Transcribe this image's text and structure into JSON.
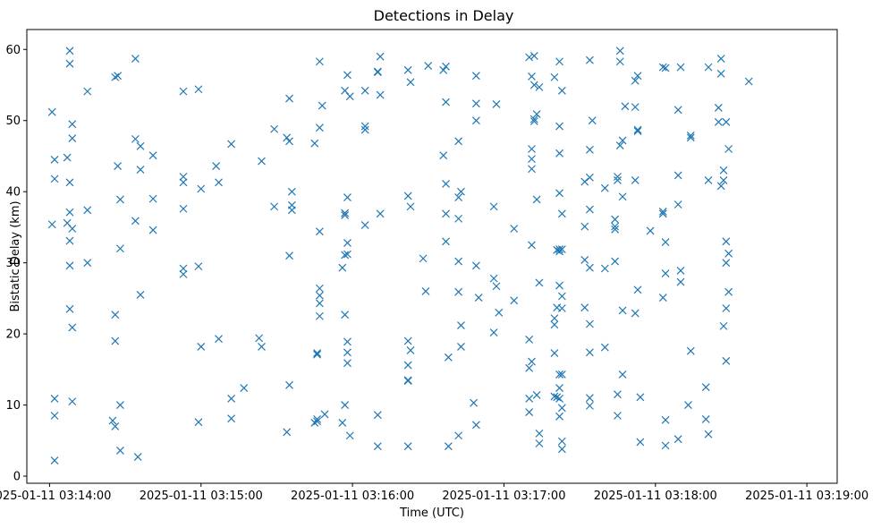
{
  "chart_data": {
    "type": "scatter",
    "title": "Detections in Delay",
    "xlabel": "Time (UTC)",
    "ylabel": "Bistatic Delay (km)",
    "x_axis_type": "time",
    "x_ticks": [
      "2025-01-11 03:14:00",
      "2025-01-11 03:15:00",
      "2025-01-11 03:16:00",
      "2025-01-11 03:17:00",
      "2025-01-11 03:18:00",
      "2025-01-11 03:19:00"
    ],
    "xlim": [
      "2025-01-11 03:13:51",
      "2025-01-11 03:19:12"
    ],
    "y_ticks": [
      0,
      10,
      20,
      30,
      40,
      50,
      60
    ],
    "ylim": [
      -1.0,
      62.8
    ],
    "grid": false,
    "legend": "none",
    "marker": "x",
    "color": "#1f77b4",
    "points": [
      [
        "2025-01-11 03:14:01",
        51.2
      ],
      [
        "2025-01-11 03:14:02",
        44.5
      ],
      [
        "2025-01-11 03:14:02",
        41.8
      ],
      [
        "2025-01-11 03:14:01",
        35.4
      ],
      [
        "2025-01-11 03:14:02",
        10.9
      ],
      [
        "2025-01-11 03:14:02",
        8.5
      ],
      [
        "2025-01-11 03:14:02",
        2.2
      ],
      [
        "2025-01-11 03:14:08",
        59.8
      ],
      [
        "2025-01-11 03:14:08",
        58.0
      ],
      [
        "2025-01-11 03:14:09",
        49.5
      ],
      [
        "2025-01-11 03:14:09",
        47.5
      ],
      [
        "2025-01-11 03:14:07",
        44.8
      ],
      [
        "2025-01-11 03:14:08",
        41.3
      ],
      [
        "2025-01-11 03:14:08",
        37.1
      ],
      [
        "2025-01-11 03:14:07",
        35.6
      ],
      [
        "2025-01-11 03:14:09",
        34.8
      ],
      [
        "2025-01-11 03:14:08",
        33.1
      ],
      [
        "2025-01-11 03:14:08",
        29.6
      ],
      [
        "2025-01-11 03:14:08",
        23.5
      ],
      [
        "2025-01-11 03:14:09",
        20.9
      ],
      [
        "2025-01-11 03:14:09",
        10.5
      ],
      [
        "2025-01-11 03:14:15",
        54.1
      ],
      [
        "2025-01-11 03:14:15",
        37.4
      ],
      [
        "2025-01-11 03:14:15",
        30.0
      ],
      [
        "2025-01-11 03:14:26",
        56.1
      ],
      [
        "2025-01-11 03:14:27",
        56.3
      ],
      [
        "2025-01-11 03:14:27",
        43.6
      ],
      [
        "2025-01-11 03:14:28",
        38.9
      ],
      [
        "2025-01-11 03:14:28",
        32.0
      ],
      [
        "2025-01-11 03:14:26",
        22.7
      ],
      [
        "2025-01-11 03:14:26",
        19.0
      ],
      [
        "2025-01-11 03:14:28",
        10.0
      ],
      [
        "2025-01-11 03:14:25",
        7.8
      ],
      [
        "2025-01-11 03:14:26",
        7.0
      ],
      [
        "2025-01-11 03:14:28",
        3.6
      ],
      [
        "2025-01-11 03:14:34",
        58.7
      ],
      [
        "2025-01-11 03:14:34",
        47.4
      ],
      [
        "2025-01-11 03:14:36",
        46.4
      ],
      [
        "2025-01-11 03:14:36",
        43.1
      ],
      [
        "2025-01-11 03:14:34",
        35.9
      ],
      [
        "2025-01-11 03:14:36",
        25.5
      ],
      [
        "2025-01-11 03:14:35",
        2.7
      ],
      [
        "2025-01-11 03:14:41",
        45.1
      ],
      [
        "2025-01-11 03:14:41",
        39.0
      ],
      [
        "2025-01-11 03:14:41",
        34.6
      ],
      [
        "2025-01-11 03:14:53",
        54.1
      ],
      [
        "2025-01-11 03:14:53",
        42.1
      ],
      [
        "2025-01-11 03:14:53",
        41.3
      ],
      [
        "2025-01-11 03:14:53",
        37.6
      ],
      [
        "2025-01-11 03:14:53",
        29.2
      ],
      [
        "2025-01-11 03:14:53",
        28.4
      ],
      [
        "2025-01-11 03:14:59",
        54.4
      ],
      [
        "2025-01-11 03:15:00",
        40.4
      ],
      [
        "2025-01-11 03:14:59",
        29.5
      ],
      [
        "2025-01-11 03:15:00",
        18.2
      ],
      [
        "2025-01-11 03:14:59",
        7.6
      ],
      [
        "2025-01-11 03:15:06",
        43.6
      ],
      [
        "2025-01-11 03:15:07",
        41.3
      ],
      [
        "2025-01-11 03:15:07",
        19.3
      ],
      [
        "2025-01-11 03:15:12",
        46.7
      ],
      [
        "2025-01-11 03:15:12",
        10.9
      ],
      [
        "2025-01-11 03:15:12",
        8.1
      ],
      [
        "2025-01-11 03:15:17",
        12.4
      ],
      [
        "2025-01-11 03:15:24",
        44.3
      ],
      [
        "2025-01-11 03:15:23",
        19.4
      ],
      [
        "2025-01-11 03:15:24",
        18.2
      ],
      [
        "2025-01-11 03:15:29",
        48.8
      ],
      [
        "2025-01-11 03:15:29",
        37.9
      ],
      [
        "2025-01-11 03:15:35",
        53.1
      ],
      [
        "2025-01-11 03:15:34",
        47.6
      ],
      [
        "2025-01-11 03:15:35",
        47.1
      ],
      [
        "2025-01-11 03:15:36",
        40.0
      ],
      [
        "2025-01-11 03:15:36",
        38.1
      ],
      [
        "2025-01-11 03:15:36",
        37.4
      ],
      [
        "2025-01-11 03:15:35",
        31.0
      ],
      [
        "2025-01-11 03:15:35",
        12.8
      ],
      [
        "2025-01-11 03:15:34",
        6.2
      ],
      [
        "2025-01-11 03:15:47",
        58.3
      ],
      [
        "2025-01-11 03:15:48",
        52.1
      ],
      [
        "2025-01-11 03:15:47",
        49.0
      ],
      [
        "2025-01-11 03:15:45",
        46.8
      ],
      [
        "2025-01-11 03:15:47",
        34.4
      ],
      [
        "2025-01-11 03:15:47",
        26.4
      ],
      [
        "2025-01-11 03:15:47",
        25.4
      ],
      [
        "2025-01-11 03:15:47",
        24.3
      ],
      [
        "2025-01-11 03:15:47",
        22.5
      ],
      [
        "2025-01-11 03:15:46",
        17.3
      ],
      [
        "2025-01-11 03:15:46",
        17.1
      ],
      [
        "2025-01-11 03:15:49",
        8.7
      ],
      [
        "2025-01-11 03:15:46",
        8.0
      ],
      [
        "2025-01-11 03:15:46",
        7.7
      ],
      [
        "2025-01-11 03:15:45",
        7.5
      ],
      [
        "2025-01-11 03:15:58",
        56.4
      ],
      [
        "2025-01-11 03:15:57",
        54.2
      ],
      [
        "2025-01-11 03:15:59",
        53.4
      ],
      [
        "2025-01-11 03:15:58",
        39.2
      ],
      [
        "2025-01-11 03:15:57",
        37.0
      ],
      [
        "2025-01-11 03:15:57",
        36.7
      ],
      [
        "2025-01-11 03:15:58",
        32.8
      ],
      [
        "2025-01-11 03:15:58",
        31.2
      ],
      [
        "2025-01-11 03:15:57",
        31.1
      ],
      [
        "2025-01-11 03:15:56",
        29.3
      ],
      [
        "2025-01-11 03:15:57",
        22.7
      ],
      [
        "2025-01-11 03:15:58",
        18.9
      ],
      [
        "2025-01-11 03:15:58",
        17.4
      ],
      [
        "2025-01-11 03:15:58",
        15.9
      ],
      [
        "2025-01-11 03:15:57",
        10.0
      ],
      [
        "2025-01-11 03:15:56",
        7.5
      ],
      [
        "2025-01-11 03:15:59",
        5.7
      ],
      [
        "2025-01-11 03:16:05",
        54.2
      ],
      [
        "2025-01-11 03:16:05",
        49.2
      ],
      [
        "2025-01-11 03:16:05",
        48.7
      ],
      [
        "2025-01-11 03:16:05",
        35.3
      ],
      [
        "2025-01-11 03:16:11",
        59.0
      ],
      [
        "2025-01-11 03:16:10",
        56.9
      ],
      [
        "2025-01-11 03:16:10",
        56.8
      ],
      [
        "2025-01-11 03:16:11",
        53.6
      ],
      [
        "2025-01-11 03:16:11",
        36.9
      ],
      [
        "2025-01-11 03:16:10",
        8.6
      ],
      [
        "2025-01-11 03:16:10",
        4.2
      ],
      [
        "2025-01-11 03:16:22",
        57.1
      ],
      [
        "2025-01-11 03:16:23",
        55.4
      ],
      [
        "2025-01-11 03:16:22",
        39.4
      ],
      [
        "2025-01-11 03:16:23",
        37.9
      ],
      [
        "2025-01-11 03:16:22",
        19.0
      ],
      [
        "2025-01-11 03:16:23",
        17.7
      ],
      [
        "2025-01-11 03:16:22",
        15.6
      ],
      [
        "2025-01-11 03:16:22",
        13.5
      ],
      [
        "2025-01-11 03:16:22",
        13.4
      ],
      [
        "2025-01-11 03:16:22",
        4.2
      ],
      [
        "2025-01-11 03:16:30",
        57.7
      ],
      [
        "2025-01-11 03:16:28",
        30.6
      ],
      [
        "2025-01-11 03:16:29",
        26.0
      ],
      [
        "2025-01-11 03:16:36",
        57.1
      ],
      [
        "2025-01-11 03:16:37",
        57.6
      ],
      [
        "2025-01-11 03:16:37",
        52.6
      ],
      [
        "2025-01-11 03:16:36",
        45.1
      ],
      [
        "2025-01-11 03:16:37",
        41.1
      ],
      [
        "2025-01-11 03:16:37",
        36.9
      ],
      [
        "2025-01-11 03:16:37",
        33.0
      ],
      [
        "2025-01-11 03:16:38",
        16.7
      ],
      [
        "2025-01-11 03:16:38",
        4.2
      ],
      [
        "2025-01-11 03:16:42",
        47.1
      ],
      [
        "2025-01-11 03:16:43",
        40.0
      ],
      [
        "2025-01-11 03:16:42",
        39.2
      ],
      [
        "2025-01-11 03:16:42",
        36.2
      ],
      [
        "2025-01-11 03:16:42",
        30.2
      ],
      [
        "2025-01-11 03:16:42",
        25.9
      ],
      [
        "2025-01-11 03:16:43",
        21.2
      ],
      [
        "2025-01-11 03:16:43",
        18.2
      ],
      [
        "2025-01-11 03:16:42",
        5.7
      ],
      [
        "2025-01-11 03:16:49",
        56.3
      ],
      [
        "2025-01-11 03:16:49",
        52.4
      ],
      [
        "2025-01-11 03:16:49",
        50.0
      ],
      [
        "2025-01-11 03:16:49",
        29.6
      ],
      [
        "2025-01-11 03:16:50",
        25.1
      ],
      [
        "2025-01-11 03:16:48",
        10.3
      ],
      [
        "2025-01-11 03:16:49",
        7.2
      ],
      [
        "2025-01-11 03:16:57",
        52.3
      ],
      [
        "2025-01-11 03:16:56",
        37.9
      ],
      [
        "2025-01-11 03:16:56",
        27.8
      ],
      [
        "2025-01-11 03:16:57",
        26.7
      ],
      [
        "2025-01-11 03:16:58",
        23.0
      ],
      [
        "2025-01-11 03:16:56",
        20.2
      ],
      [
        "2025-01-11 03:17:04",
        34.8
      ],
      [
        "2025-01-11 03:17:04",
        24.7
      ],
      [
        "2025-01-11 03:17:10",
        58.9
      ],
      [
        "2025-01-11 03:17:12",
        59.1
      ],
      [
        "2025-01-11 03:17:11",
        56.2
      ],
      [
        "2025-01-11 03:17:12",
        55.0
      ],
      [
        "2025-01-11 03:17:14",
        54.7
      ],
      [
        "2025-01-11 03:17:13",
        50.9
      ],
      [
        "2025-01-11 03:17:12",
        50.2
      ],
      [
        "2025-01-11 03:17:12",
        49.9
      ],
      [
        "2025-01-11 03:17:11",
        46.0
      ],
      [
        "2025-01-11 03:17:11",
        44.6
      ],
      [
        "2025-01-11 03:17:11",
        43.2
      ],
      [
        "2025-01-11 03:17:13",
        38.9
      ],
      [
        "2025-01-11 03:17:11",
        32.5
      ],
      [
        "2025-01-11 03:17:14",
        27.2
      ],
      [
        "2025-01-11 03:17:10",
        19.2
      ],
      [
        "2025-01-11 03:17:11",
        16.1
      ],
      [
        "2025-01-11 03:17:10",
        15.2
      ],
      [
        "2025-01-11 03:17:13",
        11.4
      ],
      [
        "2025-01-11 03:17:10",
        10.9
      ],
      [
        "2025-01-11 03:17:10",
        9.0
      ],
      [
        "2025-01-11 03:17:14",
        6.0
      ],
      [
        "2025-01-11 03:17:14",
        4.6
      ],
      [
        "2025-01-11 03:17:20",
        56.1
      ],
      [
        "2025-01-11 03:17:22",
        58.3
      ],
      [
        "2025-01-11 03:17:23",
        54.2
      ],
      [
        "2025-01-11 03:17:22",
        49.2
      ],
      [
        "2025-01-11 03:17:22",
        45.4
      ],
      [
        "2025-01-11 03:17:22",
        39.8
      ],
      [
        "2025-01-11 03:17:23",
        36.9
      ],
      [
        "2025-01-11 03:17:21",
        31.8
      ],
      [
        "2025-01-11 03:17:22",
        31.9
      ],
      [
        "2025-01-11 03:17:23",
        31.9
      ],
      [
        "2025-01-11 03:17:22",
        31.6
      ],
      [
        "2025-01-11 03:17:22",
        26.8
      ],
      [
        "2025-01-11 03:17:23",
        25.3
      ],
      [
        "2025-01-11 03:17:21",
        23.7
      ],
      [
        "2025-01-11 03:17:23",
        23.6
      ],
      [
        "2025-01-11 03:17:20",
        22.2
      ],
      [
        "2025-01-11 03:17:20",
        21.3
      ],
      [
        "2025-01-11 03:17:20",
        17.3
      ],
      [
        "2025-01-11 03:17:22",
        14.3
      ],
      [
        "2025-01-11 03:17:23",
        14.3
      ],
      [
        "2025-01-11 03:17:22",
        12.4
      ],
      [
        "2025-01-11 03:17:20",
        11.2
      ],
      [
        "2025-01-11 03:17:21",
        11.1
      ],
      [
        "2025-01-11 03:17:22",
        10.9
      ],
      [
        "2025-01-11 03:17:23",
        9.6
      ],
      [
        "2025-01-11 03:17:22",
        8.4
      ],
      [
        "2025-01-11 03:17:23",
        4.9
      ],
      [
        "2025-01-11 03:17:23",
        3.8
      ],
      [
        "2025-01-11 03:17:34",
        58.5
      ],
      [
        "2025-01-11 03:17:35",
        50.0
      ],
      [
        "2025-01-11 03:17:34",
        45.9
      ],
      [
        "2025-01-11 03:17:34",
        42.0
      ],
      [
        "2025-01-11 03:17:32",
        41.4
      ],
      [
        "2025-01-11 03:17:34",
        37.5
      ],
      [
        "2025-01-11 03:17:32",
        35.1
      ],
      [
        "2025-01-11 03:17:32",
        30.4
      ],
      [
        "2025-01-11 03:17:34",
        29.3
      ],
      [
        "2025-01-11 03:17:32",
        23.7
      ],
      [
        "2025-01-11 03:17:34",
        21.4
      ],
      [
        "2025-01-11 03:17:34",
        17.4
      ],
      [
        "2025-01-11 03:17:34",
        11.0
      ],
      [
        "2025-01-11 03:17:34",
        9.9
      ],
      [
        "2025-01-11 03:17:40",
        40.5
      ],
      [
        "2025-01-11 03:17:40",
        29.2
      ],
      [
        "2025-01-11 03:17:40",
        18.1
      ],
      [
        "2025-01-11 03:17:46",
        59.8
      ],
      [
        "2025-01-11 03:17:46",
        58.3
      ],
      [
        "2025-01-11 03:17:46",
        46.5
      ],
      [
        "2025-01-11 03:17:47",
        47.2
      ],
      [
        "2025-01-11 03:17:45",
        42.1
      ],
      [
        "2025-01-11 03:17:45",
        41.6
      ],
      [
        "2025-01-11 03:17:47",
        39.3
      ],
      [
        "2025-01-11 03:17:44",
        36.1
      ],
      [
        "2025-01-11 03:17:44",
        35.1
      ],
      [
        "2025-01-11 03:17:44",
        34.7
      ],
      [
        "2025-01-11 03:17:44",
        30.2
      ],
      [
        "2025-01-11 03:17:47",
        23.3
      ],
      [
        "2025-01-11 03:17:47",
        14.3
      ],
      [
        "2025-01-11 03:17:45",
        11.5
      ],
      [
        "2025-01-11 03:17:45",
        8.5
      ],
      [
        "2025-01-11 03:17:48",
        52.0
      ],
      [
        "2025-01-11 03:17:52",
        55.6
      ],
      [
        "2025-01-11 03:17:53",
        56.3
      ],
      [
        "2025-01-11 03:17:52",
        51.9
      ],
      [
        "2025-01-11 03:17:53",
        48.7
      ],
      [
        "2025-01-11 03:17:53",
        48.5
      ],
      [
        "2025-01-11 03:17:52",
        41.6
      ],
      [
        "2025-01-11 03:17:53",
        26.2
      ],
      [
        "2025-01-11 03:17:52",
        22.9
      ],
      [
        "2025-01-11 03:17:54",
        11.1
      ],
      [
        "2025-01-11 03:17:54",
        4.8
      ],
      [
        "2025-01-11 03:17:58",
        34.5
      ],
      [
        "2025-01-11 03:18:03",
        57.5
      ],
      [
        "2025-01-11 03:18:04",
        57.4
      ],
      [
        "2025-01-11 03:18:03",
        37.2
      ],
      [
        "2025-01-11 03:18:03",
        36.9
      ],
      [
        "2025-01-11 03:18:04",
        32.9
      ],
      [
        "2025-01-11 03:18:04",
        28.5
      ],
      [
        "2025-01-11 03:18:03",
        25.1
      ],
      [
        "2025-01-11 03:18:04",
        7.9
      ],
      [
        "2025-01-11 03:18:04",
        4.3
      ],
      [
        "2025-01-11 03:18:10",
        57.5
      ],
      [
        "2025-01-11 03:18:09",
        51.5
      ],
      [
        "2025-01-11 03:18:09",
        42.3
      ],
      [
        "2025-01-11 03:18:09",
        38.2
      ],
      [
        "2025-01-11 03:18:10",
        28.9
      ],
      [
        "2025-01-11 03:18:10",
        27.3
      ],
      [
        "2025-01-11 03:18:09",
        5.2
      ],
      [
        "2025-01-11 03:18:14",
        47.9
      ],
      [
        "2025-01-11 03:18:14",
        47.6
      ],
      [
        "2025-01-11 03:18:14",
        17.6
      ],
      [
        "2025-01-11 03:18:13",
        10.0
      ],
      [
        "2025-01-11 03:18:21",
        57.5
      ],
      [
        "2025-01-11 03:18:21",
        41.6
      ],
      [
        "2025-01-11 03:18:20",
        12.5
      ],
      [
        "2025-01-11 03:18:20",
        8.0
      ],
      [
        "2025-01-11 03:18:21",
        5.9
      ],
      [
        "2025-01-11 03:18:26",
        58.7
      ],
      [
        "2025-01-11 03:18:25",
        51.8
      ],
      [
        "2025-01-11 03:18:25",
        49.8
      ],
      [
        "2025-01-11 03:18:26",
        56.6
      ],
      [
        "2025-01-11 03:18:26",
        40.8
      ],
      [
        "2025-01-11 03:18:28",
        49.8
      ],
      [
        "2025-01-11 03:18:27",
        43.0
      ],
      [
        "2025-01-11 03:18:27",
        41.6
      ],
      [
        "2025-01-11 03:18:28",
        33.0
      ],
      [
        "2025-01-11 03:18:29",
        31.3
      ],
      [
        "2025-01-11 03:18:28",
        30.0
      ],
      [
        "2025-01-11 03:18:29",
        25.9
      ],
      [
        "2025-01-11 03:18:28",
        23.6
      ],
      [
        "2025-01-11 03:18:27",
        21.1
      ],
      [
        "2025-01-11 03:18:28",
        16.2
      ],
      [
        "2025-01-11 03:18:29",
        46.0
      ],
      [
        "2025-01-11 03:18:37",
        55.5
      ]
    ]
  }
}
